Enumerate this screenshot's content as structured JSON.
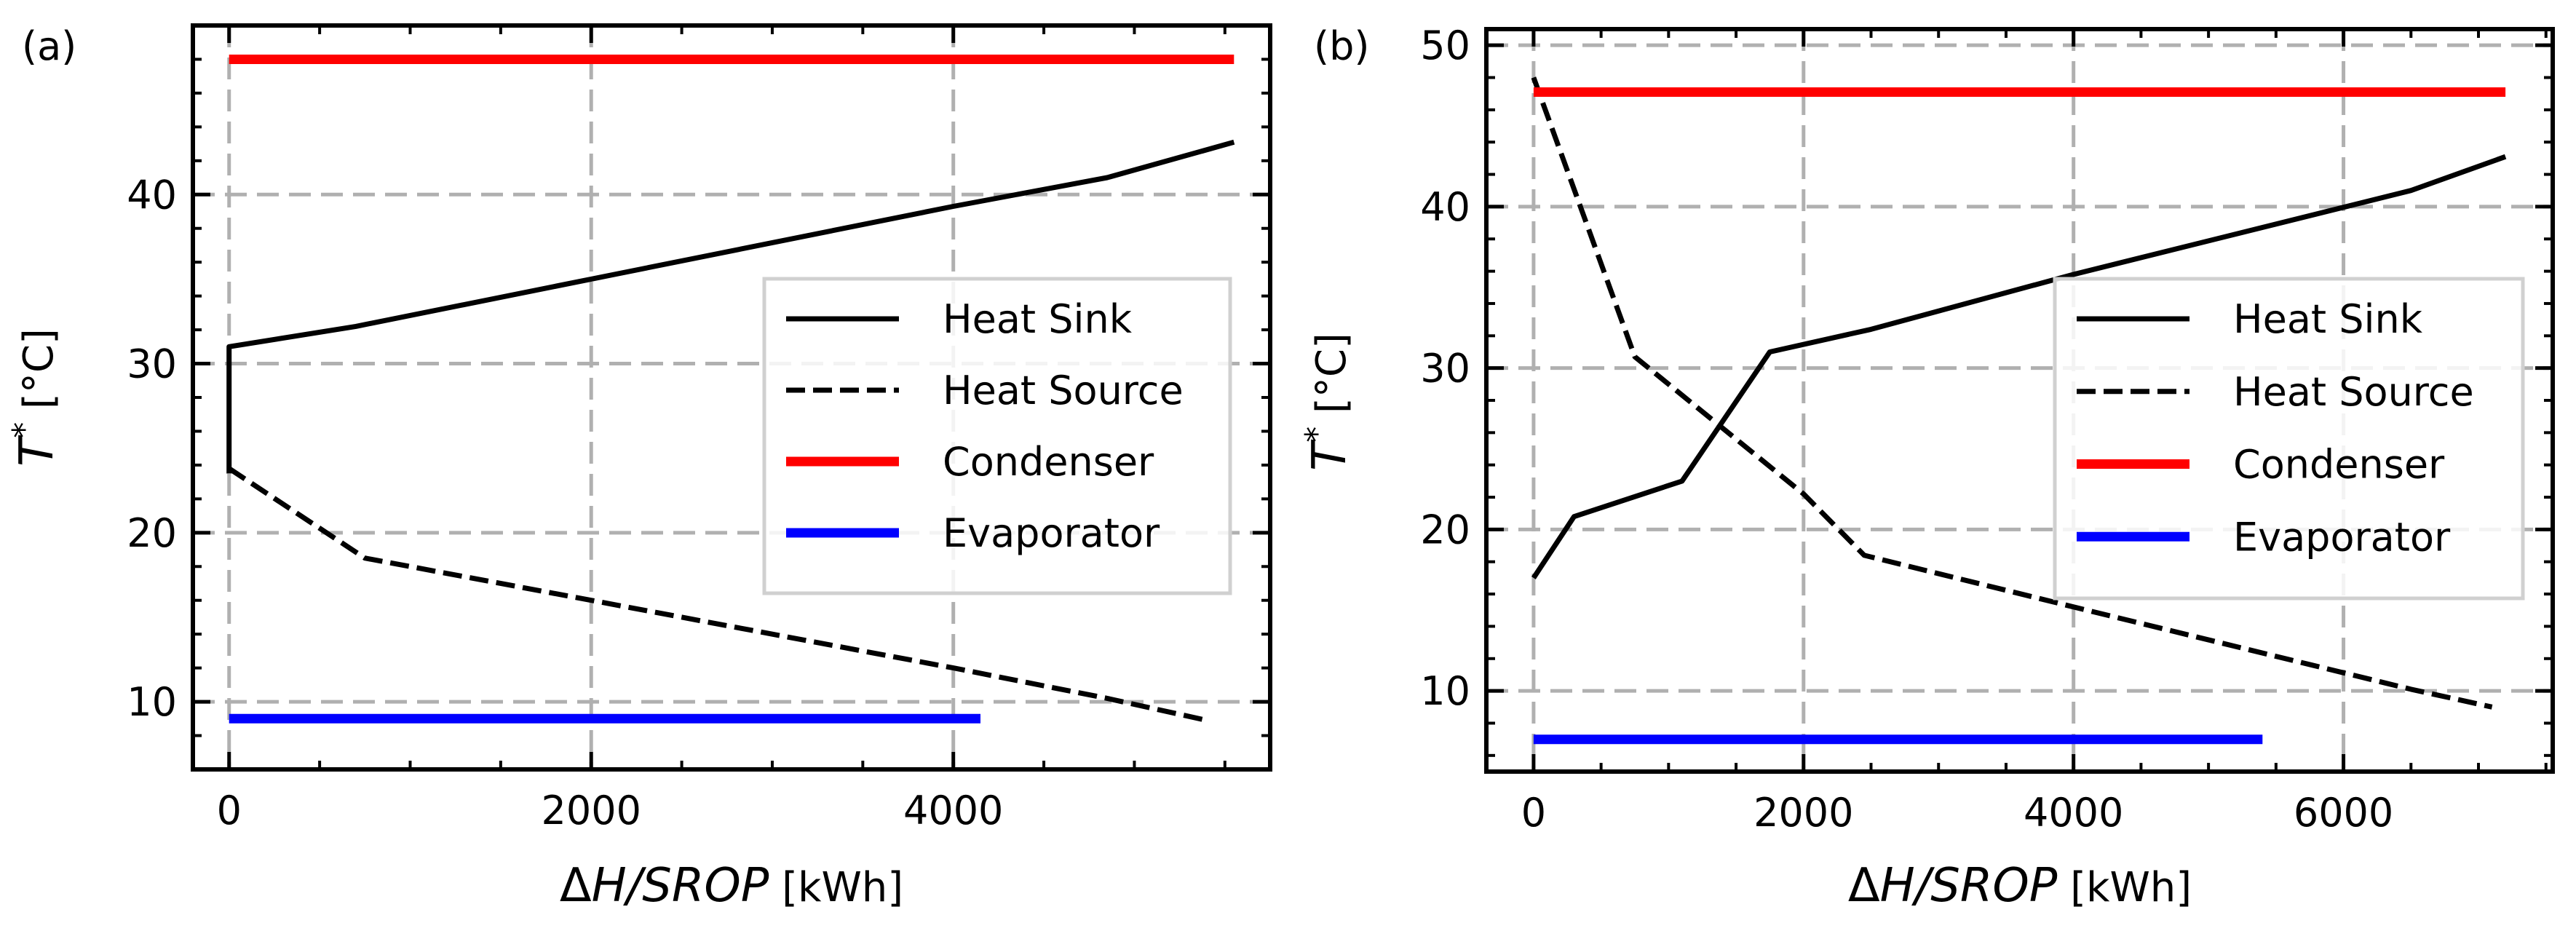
{
  "chart_data": [
    {
      "panel_label": "(a)",
      "type": "line",
      "xlabel": "ΔH/SROP [kWh]",
      "xlabel_parts": {
        "delta": "Δ",
        "italic": "H/SROP",
        "unit": "[kWh]"
      },
      "ylabel": "T* [°C]",
      "ylabel_parts": {
        "italic": "T",
        "sup": "*",
        "unit": "[°C]"
      },
      "xlim": [
        -200,
        5750
      ],
      "ylim": [
        6,
        50
      ],
      "xticks": [
        0,
        2000,
        4000
      ],
      "xtick_labels": [
        "0",
        "2000",
        "4000"
      ],
      "yticks": [
        10,
        20,
        30,
        40
      ],
      "ytick_labels": [
        "10",
        "20",
        "30",
        "40"
      ],
      "grid": true,
      "legend_position": "center-right",
      "series": [
        {
          "name": "Heat Sink",
          "color": "#000000",
          "style": "solid",
          "points": [
            [
              0,
              23.5
            ],
            [
              0,
              31
            ],
            [
              700,
              32.2
            ],
            [
              2000,
              35
            ],
            [
              4000,
              39.3
            ],
            [
              4850,
              41
            ],
            [
              5550,
              43.1
            ]
          ]
        },
        {
          "name": "Heat Source",
          "color": "#000000",
          "style": "dashed",
          "points": [
            [
              0,
              23.8
            ],
            [
              750,
              18.5
            ],
            [
              2000,
              16
            ],
            [
              4000,
              12
            ],
            [
              4850,
              10.2
            ],
            [
              5400,
              8.9
            ]
          ]
        },
        {
          "name": "Condenser",
          "color": "#ff0000",
          "style": "solid",
          "points": [
            [
              0,
              48
            ],
            [
              5550,
              48
            ]
          ]
        },
        {
          "name": "Evaporator",
          "color": "#0000ff",
          "style": "solid",
          "points": [
            [
              0,
              9
            ],
            [
              4150,
              9
            ]
          ]
        }
      ]
    },
    {
      "panel_label": "(b)",
      "type": "line",
      "xlabel": "ΔH/SROP [kWh]",
      "xlabel_parts": {
        "delta": "Δ",
        "italic": "H/SROP",
        "unit": "[kWh]"
      },
      "ylabel": "T* [°C]",
      "ylabel_parts": {
        "italic": "T",
        "sup": "*",
        "unit": "[°C]"
      },
      "xlim": [
        -350,
        7550
      ],
      "ylim": [
        5,
        51
      ],
      "xticks": [
        0,
        2000,
        4000,
        6000
      ],
      "xtick_labels": [
        "0",
        "2000",
        "4000",
        "6000"
      ],
      "yticks": [
        10,
        20,
        30,
        40,
        50
      ],
      "ytick_labels": [
        "10",
        "20",
        "30",
        "40",
        "50"
      ],
      "grid": true,
      "legend_position": "center-right",
      "series": [
        {
          "name": "Heat Sink",
          "color": "#000000",
          "style": "solid",
          "points": [
            [
              0,
              17
            ],
            [
              300,
              20.8
            ],
            [
              1100,
              23
            ],
            [
              1750,
              31
            ],
            [
              2500,
              32.4
            ],
            [
              4000,
              35.8
            ],
            [
              6500,
              41
            ],
            [
              7200,
              43.1
            ]
          ]
        },
        {
          "name": "Heat Source",
          "color": "#000000",
          "style": "dashed",
          "points": [
            [
              0,
              48
            ],
            [
              750,
              30.7
            ],
            [
              2000,
              22.2
            ],
            [
              2450,
              18.4
            ],
            [
              4000,
              15.2
            ],
            [
              6500,
              10.1
            ],
            [
              7100,
              9
            ]
          ]
        },
        {
          "name": "Condenser",
          "color": "#ff0000",
          "style": "solid",
          "points": [
            [
              0,
              47.1
            ],
            [
              7200,
              47.1
            ]
          ]
        },
        {
          "name": "Evaporator",
          "color": "#0000ff",
          "style": "solid",
          "points": [
            [
              0,
              7
            ],
            [
              5400,
              7
            ]
          ]
        }
      ]
    }
  ]
}
